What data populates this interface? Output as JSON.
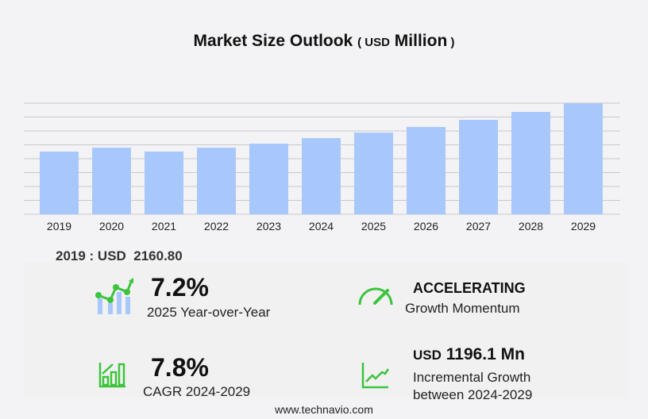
{
  "title": {
    "main": "Market Size Outlook",
    "unit_open": "( ",
    "unit": "USD",
    "unit_word": "Million",
    "unit_close": " )"
  },
  "chart_data": {
    "type": "bar",
    "title": "Market Size Outlook (USD Million)",
    "categories": [
      "2019",
      "2020",
      "2021",
      "2022",
      "2023",
      "2024",
      "2025",
      "2026",
      "2027",
      "2028",
      "2029"
    ],
    "values": [
      2160.8,
      2297,
      2161,
      2297,
      2434,
      2626,
      2817,
      3009,
      3255,
      3529,
      3822
    ],
    "ylim": [
      0,
      3830
    ],
    "grid": true,
    "bar_color": "#a8c8fc"
  },
  "base_label": "2019 : USD  2160.80",
  "stats": {
    "yoy": {
      "value": "7.2%",
      "label": "2025 Year-over-Year",
      "icon": "growth-chart-icon"
    },
    "momentum": {
      "value": "ACCELERATING",
      "label": "Growth Momentum",
      "icon": "speedometer-icon"
    },
    "cagr": {
      "value": "7.8%",
      "label": "CAGR 2024-2029",
      "icon": "bar-chart-up-icon"
    },
    "incremental": {
      "unit": "USD",
      "value": "1196.1 Mn",
      "label1": "Incremental Growth",
      "label2": "between 2024-2029",
      "icon": "trend-line-icon"
    }
  },
  "accent": "#3cc43c",
  "footer": "www.technavio.com"
}
